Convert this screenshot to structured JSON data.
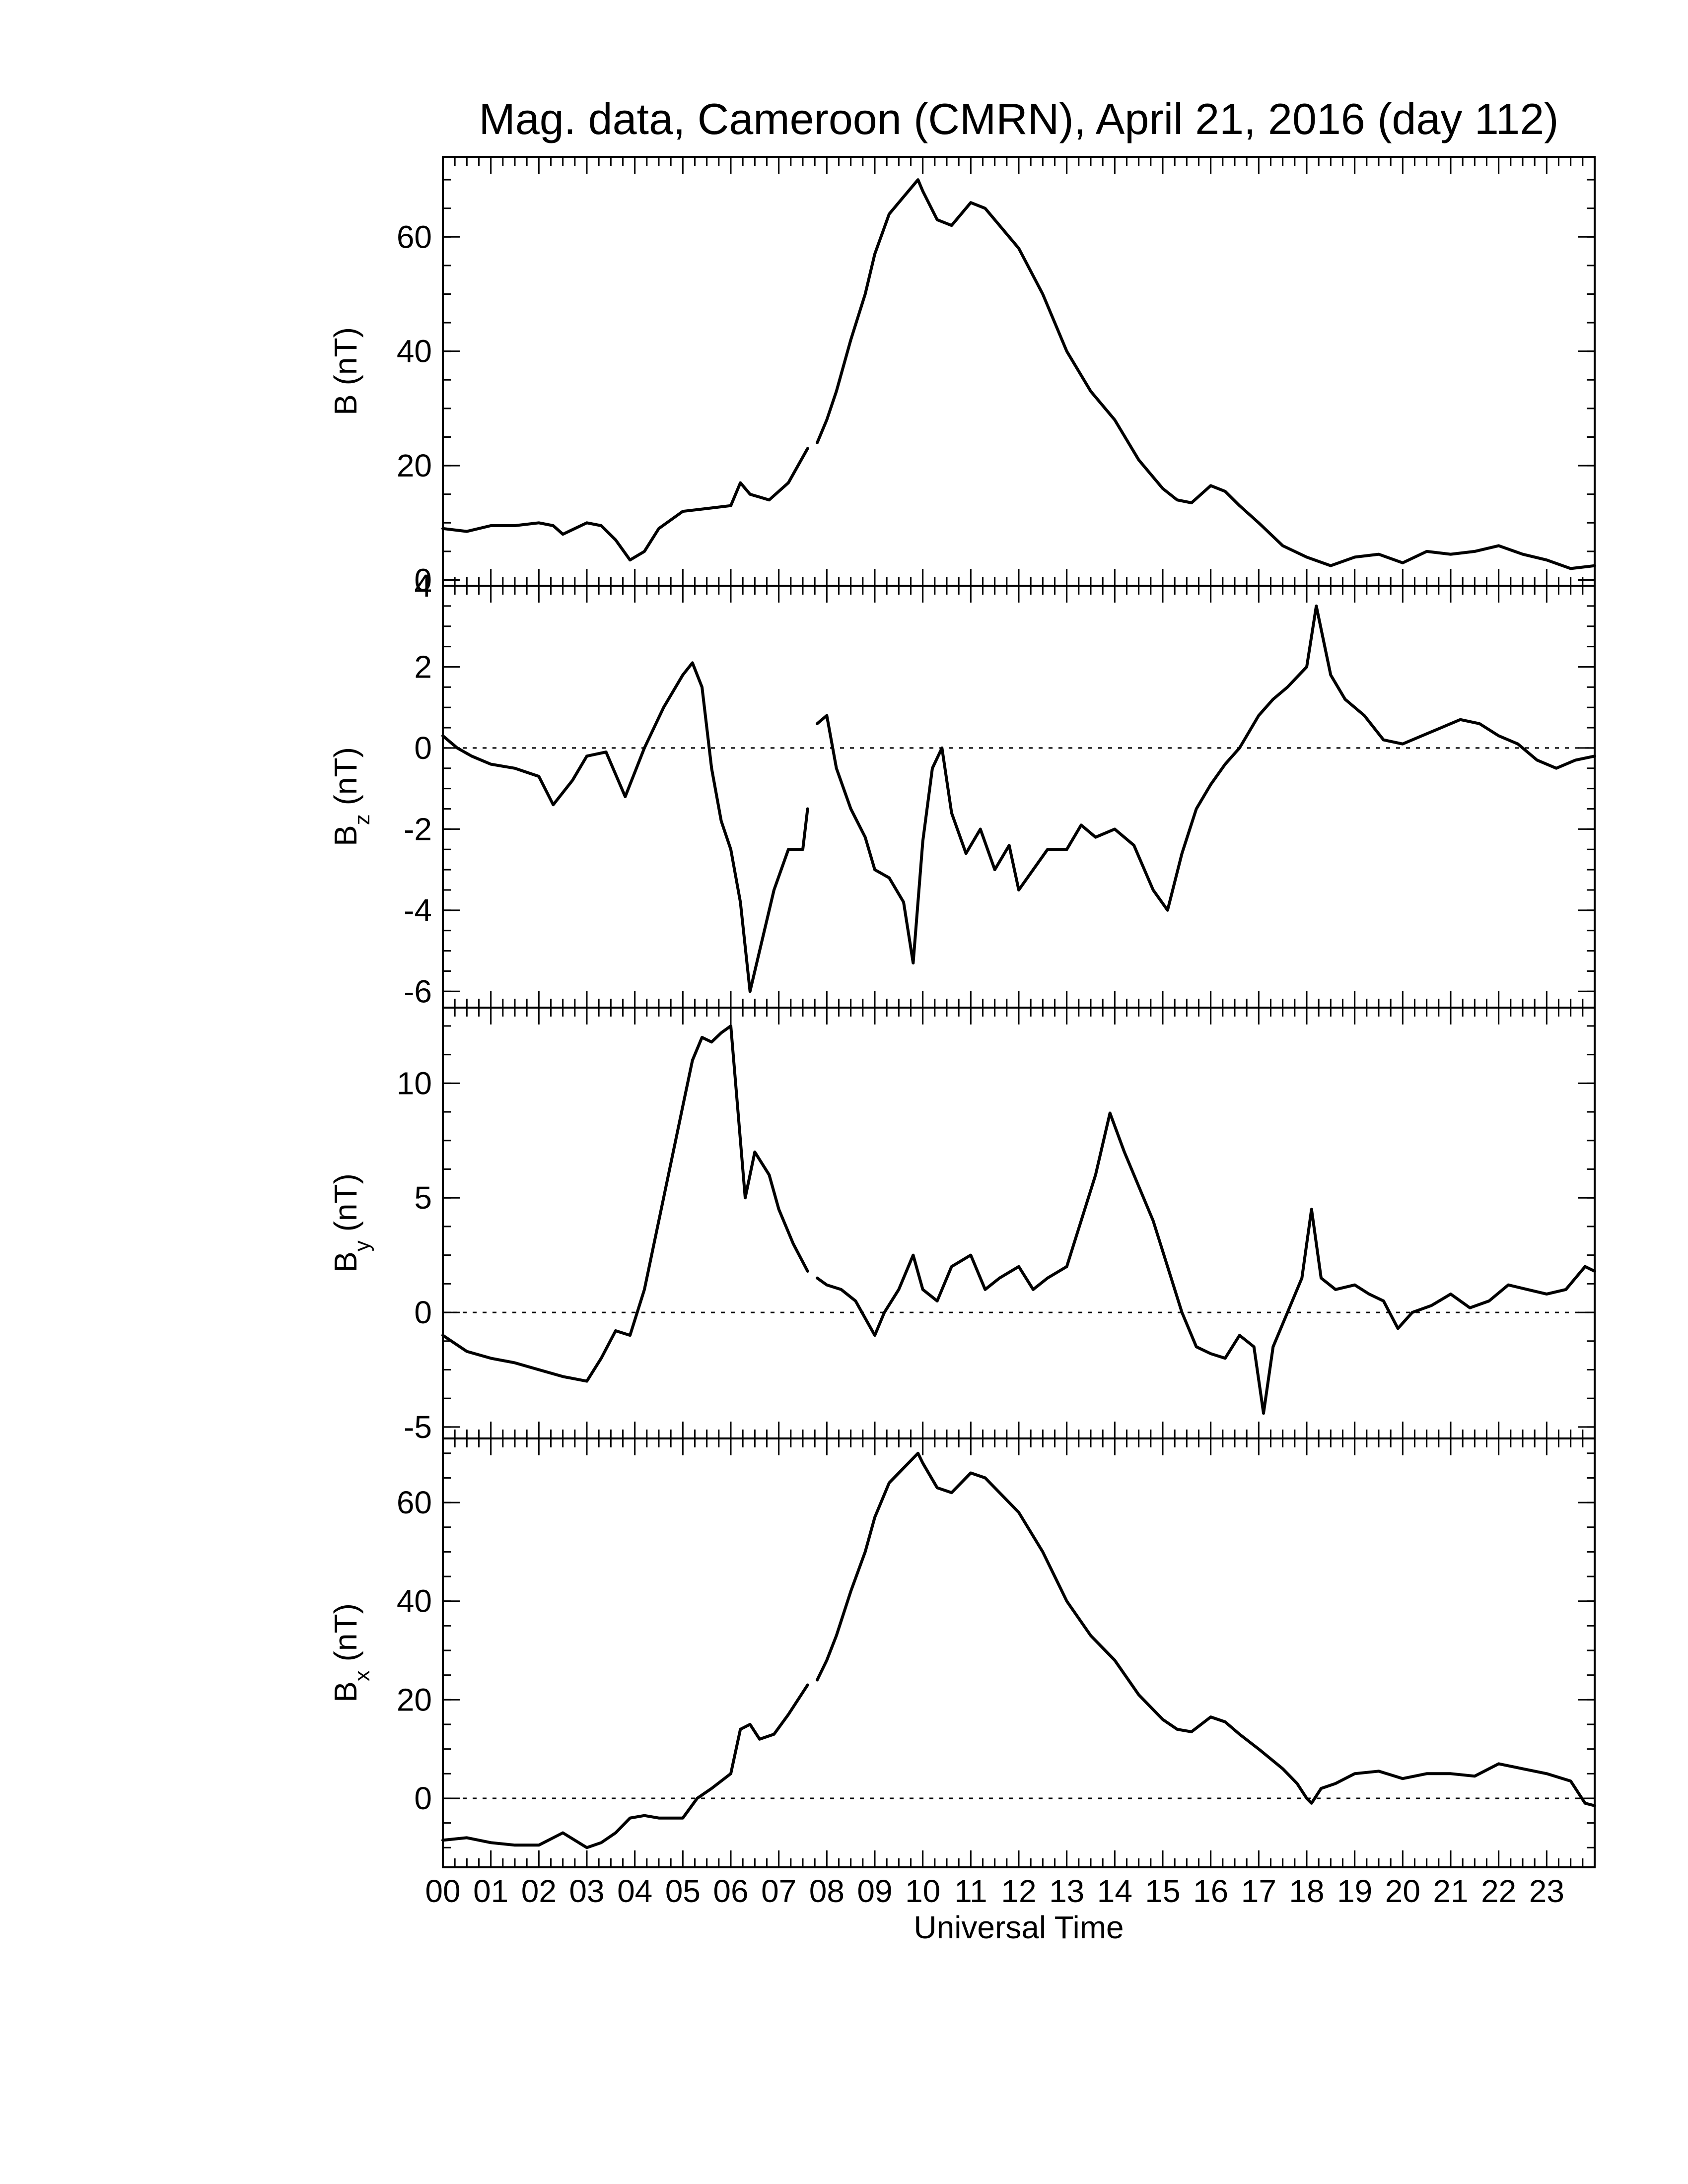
{
  "chart_data": {
    "type": "line",
    "title": "Mag. data, Cameroon (CMRN), April 21, 2016 (day 112)",
    "xlabel": "Universal Time",
    "x_tick_labels": [
      "00",
      "01",
      "02",
      "03",
      "04",
      "05",
      "06",
      "07",
      "08",
      "09",
      "10",
      "11",
      "12",
      "13",
      "14",
      "15",
      "16",
      "17",
      "18",
      "19",
      "20",
      "21",
      "22",
      "23"
    ],
    "xlim": [
      0,
      24
    ],
    "x_unit": "hours UT",
    "panels": [
      {
        "id": "B",
        "ylabel": "B (nT)",
        "ylabel_main": "B (nT)",
        "ylabel_sub": "",
        "ylabel_rest": "",
        "ylim": [
          -1,
          74
        ],
        "yticks": [
          0,
          20,
          40,
          60
        ],
        "y_tick_labels": [
          "0",
          "20",
          "40",
          "60"
        ],
        "zero_line": false,
        "series": [
          {
            "x": [
              0,
              0.5,
              1,
              1.5,
              2,
              2.3,
              2.5,
              3,
              3.3,
              3.6,
              3.9,
              4.2,
              4.5,
              5,
              5.5,
              6,
              6.2,
              6.4,
              6.8,
              7.2,
              7.6
            ],
            "y": [
              9,
              8.5,
              9.5,
              9.5,
              10,
              9.5,
              8,
              10,
              9.5,
              7,
              3.5,
              5,
              9,
              12,
              12.5,
              13,
              17,
              15,
              14,
              17,
              23
            ]
          },
          {
            "x": [
              7.8,
              8,
              8.2,
              8.5,
              8.8,
              9,
              9.3,
              9.6,
              9.9,
              10,
              10.3,
              10.6,
              11,
              11.3,
              11.6,
              12,
              12.5,
              13,
              13.5,
              14,
              14.5,
              15,
              15.3,
              15.6,
              16,
              16.3,
              16.6,
              17,
              17.5,
              18,
              18.5,
              19,
              19.5,
              20,
              20.5,
              21,
              21.5,
              22,
              22.5,
              23,
              23.5,
              24
            ],
            "y": [
              24,
              28,
              33,
              42,
              50,
              57,
              64,
              67,
              70,
              68,
              63,
              62,
              66,
              65,
              62,
              58,
              50,
              40,
              33,
              28,
              21,
              16,
              14,
              13.5,
              16.5,
              15.5,
              13,
              10,
              6,
              4,
              2.5,
              4,
              4.5,
              3,
              5,
              4.5,
              5,
              6,
              4.5,
              3.5,
              2,
              2.5
            ]
          }
        ]
      },
      {
        "id": "Bz",
        "ylabel": "Bz (nT)",
        "ylabel_main": "B",
        "ylabel_sub": "z",
        "ylabel_rest": " (nT)",
        "ylim": [
          -6.4,
          4
        ],
        "yticks": [
          -6,
          -4,
          -2,
          0,
          2,
          4
        ],
        "y_tick_labels": [
          "-6",
          "-4",
          "-2",
          "0",
          "2",
          "4"
        ],
        "zero_line": true,
        "series": [
          {
            "x": [
              0,
              0.3,
              0.6,
              1,
              1.5,
              2,
              2.3,
              2.7,
              3,
              3.4,
              3.8,
              4.2,
              4.6,
              5,
              5.2,
              5.4,
              5.6,
              5.8,
              6,
              6.2,
              6.4,
              6.6,
              6.9,
              7.2,
              7.5,
              7.6
            ],
            "y": [
              0.3,
              0,
              -0.2,
              -0.4,
              -0.5,
              -0.7,
              -1.4,
              -0.8,
              -0.2,
              -0.1,
              -1.2,
              0,
              1,
              1.8,
              2.1,
              1.5,
              -0.5,
              -1.8,
              -2.5,
              -3.8,
              -6,
              -5,
              -3.5,
              -2.5,
              -2.5,
              -1.5
            ]
          },
          {
            "x": [
              7.8,
              8,
              8.2,
              8.5,
              8.8,
              9,
              9.3,
              9.6,
              9.8,
              10,
              10.2,
              10.4,
              10.6,
              10.9,
              11.2,
              11.5,
              11.8,
              12,
              12.3,
              12.6,
              13,
              13.3,
              13.6,
              14,
              14.4,
              14.8,
              15.1,
              15.4,
              15.7,
              16,
              16.3,
              16.6,
              17,
              17.3,
              17.6,
              18,
              18.2,
              18.5,
              18.8,
              19.2,
              19.6,
              20,
              20.4,
              20.8,
              21.2,
              21.6,
              22,
              22.4,
              22.8,
              23.2,
              23.6,
              24
            ],
            "y": [
              0.6,
              0.8,
              -0.5,
              -1.5,
              -2.2,
              -3,
              -3.2,
              -3.8,
              -5.3,
              -2.3,
              -0.5,
              0,
              -1.6,
              -2.6,
              -2,
              -3,
              -2.4,
              -3.5,
              -3,
              -2.5,
              -2.5,
              -1.9,
              -2.2,
              -2,
              -2.4,
              -3.5,
              -4,
              -2.6,
              -1.5,
              -0.9,
              -0.4,
              0,
              0.8,
              1.2,
              1.5,
              2,
              3.5,
              1.8,
              1.2,
              0.8,
              0.2,
              0.1,
              0.3,
              0.5,
              0.7,
              0.6,
              0.3,
              0.1,
              -0.3,
              -0.5,
              -0.3,
              -0.2
            ]
          }
        ]
      },
      {
        "id": "By",
        "ylabel": "By (nT)",
        "ylabel_main": "B",
        "ylabel_sub": "y",
        "ylabel_rest": " (nT)",
        "ylim": [
          -5.5,
          13.3
        ],
        "yticks": [
          -5,
          0,
          5,
          10
        ],
        "y_tick_labels": [
          "-5",
          "0",
          "5",
          "10"
        ],
        "zero_line": true,
        "series": [
          {
            "x": [
              0,
              0.5,
              1,
              1.5,
              2,
              2.5,
              3,
              3.3,
              3.6,
              3.9,
              4.2,
              4.5,
              4.8,
              5,
              5.2,
              5.4,
              5.6,
              5.8,
              6,
              6.1,
              6.3,
              6.5,
              6.8,
              7,
              7.3,
              7.6
            ],
            "y": [
              -1,
              -1.7,
              -2,
              -2.2,
              -2.5,
              -2.8,
              -3,
              -2,
              -0.8,
              -1,
              1,
              4,
              7,
              9,
              11,
              12,
              11.8,
              12.2,
              12.5,
              10,
              5,
              7,
              6,
              4.5,
              3,
              1.8
            ]
          },
          {
            "x": [
              7.8,
              8,
              8.3,
              8.6,
              9,
              9.2,
              9.5,
              9.8,
              10,
              10.3,
              10.6,
              11,
              11.3,
              11.6,
              12,
              12.3,
              12.6,
              13,
              13.3,
              13.6,
              13.9,
              14.2,
              14.5,
              14.8,
              15.1,
              15.4,
              15.7,
              16,
              16.3,
              16.6,
              16.9,
              17.1,
              17.3,
              17.6,
              17.9,
              18.1,
              18.3,
              18.6,
              19,
              19.3,
              19.6,
              19.9,
              20.2,
              20.6,
              21,
              21.4,
              21.8,
              22.2,
              22.6,
              23,
              23.4,
              23.8,
              24
            ],
            "y": [
              1.5,
              1.2,
              1,
              0.5,
              -1,
              0,
              1,
              2.5,
              1,
              0.5,
              2,
              2.5,
              1,
              1.5,
              2,
              1,
              1.5,
              2,
              4,
              6,
              8.7,
              7,
              5.5,
              4,
              2,
              0,
              -1.5,
              -1.8,
              -2,
              -1,
              -1.5,
              -4.4,
              -1.5,
              0,
              1.5,
              4.5,
              1.5,
              1,
              1.2,
              0.8,
              0.5,
              -0.7,
              0,
              0.3,
              0.8,
              0.2,
              0.5,
              1.2,
              1,
              0.8,
              1,
              2,
              1.8
            ]
          }
        ]
      },
      {
        "id": "Bx",
        "ylabel": "Bx (nT)",
        "ylabel_main": "B",
        "ylabel_sub": "x",
        "ylabel_rest": " (nT)",
        "ylim": [
          -14,
          73
        ],
        "yticks": [
          0,
          20,
          40,
          60
        ],
        "y_tick_labels": [
          "0",
          "20",
          "40",
          "60"
        ],
        "zero_line": true,
        "series": [
          {
            "x": [
              0,
              0.5,
              1,
              1.5,
              2,
              2.5,
              3,
              3.3,
              3.6,
              3.9,
              4.2,
              4.5,
              5,
              5.3,
              5.6,
              6,
              6.2,
              6.4,
              6.6,
              6.9,
              7.2,
              7.6
            ],
            "y": [
              -8.5,
              -8,
              -9,
              -9.5,
              -9.5,
              -7,
              -10,
              -9,
              -7,
              -4,
              -3.5,
              -4,
              -4,
              0,
              2,
              5,
              14,
              15,
              12,
              13,
              17,
              23
            ]
          },
          {
            "x": [
              7.8,
              8,
              8.2,
              8.5,
              8.8,
              9,
              9.3,
              9.6,
              9.9,
              10,
              10.3,
              10.6,
              11,
              11.3,
              11.6,
              12,
              12.5,
              13,
              13.5,
              14,
              14.5,
              15,
              15.3,
              15.6,
              16,
              16.3,
              16.6,
              17,
              17.5,
              17.8,
              18,
              18.1,
              18.3,
              18.6,
              19,
              19.5,
              20,
              20.5,
              21,
              21.5,
              22,
              22.5,
              23,
              23.5,
              23.8,
              24
            ],
            "y": [
              24,
              28,
              33,
              42,
              50,
              57,
              64,
              67,
              70,
              68,
              63,
              62,
              66,
              65,
              62,
              58,
              50,
              40,
              33,
              28,
              21,
              16,
              14,
              13.5,
              16.5,
              15.5,
              13,
              10,
              6,
              3,
              0,
              -1,
              2,
              3,
              5,
              5.5,
              4,
              5,
              5,
              4.5,
              7,
              6,
              5,
              3.5,
              -1,
              -1.5
            ]
          }
        ]
      }
    ]
  }
}
